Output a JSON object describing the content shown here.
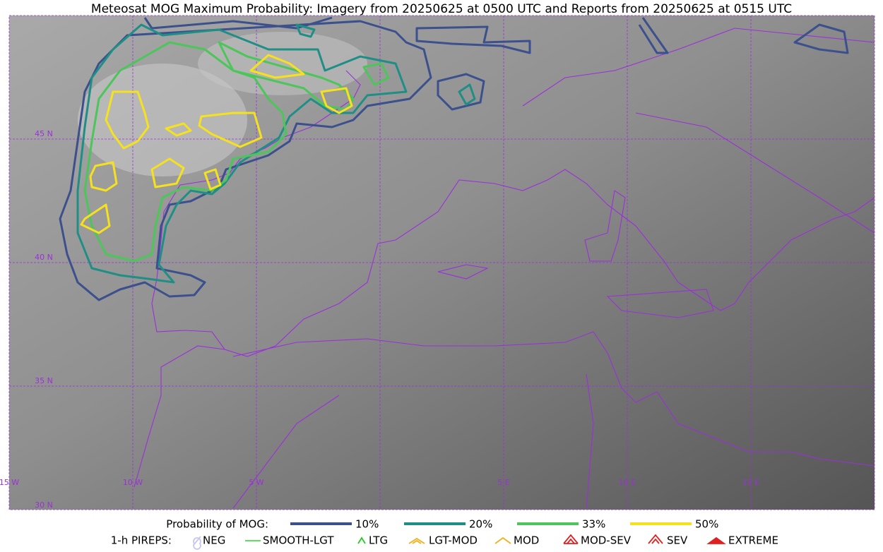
{
  "title": "Meteosat MOG Maximum Probability: Imagery from 20250625 at 0500 UTC and Reports from 20250625 at 0515 UTC",
  "grid_labels": {
    "lat": [
      "45 N",
      "40 N",
      "35 N",
      "30 N"
    ],
    "lon": [
      "15 W",
      "10 W",
      "5 W",
      "5 E",
      "10 E",
      "15 E"
    ]
  },
  "legend": {
    "probability": {
      "label": "Probability of MOG:",
      "items": [
        {
          "label": "10%",
          "color": "#3b508c"
        },
        {
          "label": "20%",
          "color": "#1f8f86"
        },
        {
          "label": "33%",
          "color": "#4cc55a"
        },
        {
          "label": "50%",
          "color": "#f5e11e"
        }
      ]
    },
    "pireps": {
      "label": "1-h PIREPS:",
      "items": [
        {
          "label": "NEG",
          "color": "#c6c6f2"
        },
        {
          "label": "SMOOTH-LGT",
          "color": "#44dd44"
        },
        {
          "label": "LTG",
          "color": "#22cc22"
        },
        {
          "label": "LGT-MOD",
          "color": "#f2b01e"
        },
        {
          "label": "MOD",
          "color": "#f2b01e"
        },
        {
          "label": "MOD-SEV",
          "color": "#e02020"
        },
        {
          "label": "SEV",
          "color": "#e02020"
        },
        {
          "label": "EXTREME",
          "color": "#e02020"
        }
      ]
    }
  }
}
